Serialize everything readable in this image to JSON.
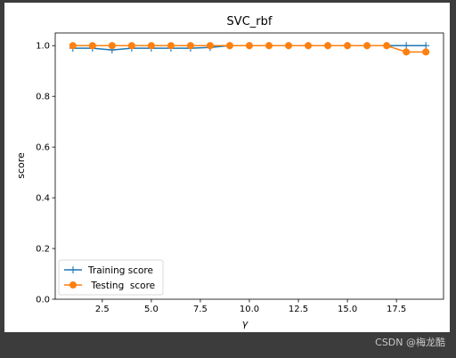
{
  "colors": {
    "train": "#1f77b4",
    "test": "#ff7f0e",
    "window_frame": "#3c3c3c"
  },
  "watermark": "CSDN @梅龙酷",
  "chart_data": {
    "type": "line",
    "title": "SVC_rbf",
    "xlabel": "γ",
    "ylabel": "score",
    "xlim": [
      0.1,
      19.9
    ],
    "ylim": [
      0.0,
      1.05
    ],
    "xticks": [
      2.5,
      5.0,
      7.5,
      10.0,
      12.5,
      15.0,
      17.5
    ],
    "xtick_labels": [
      "2.5",
      "5.0",
      "7.5",
      "10.0",
      "12.5",
      "15.0",
      "17.5"
    ],
    "yticks": [
      0.0,
      0.2,
      0.4,
      0.6,
      0.8,
      1.0
    ],
    "ytick_labels": [
      "0.0",
      "0.2",
      "0.4",
      "0.6",
      "0.8",
      "1.0"
    ],
    "grid": false,
    "legend_position": "lower-left",
    "x": [
      1,
      2,
      3,
      4,
      5,
      6,
      7,
      8,
      9,
      10,
      11,
      12,
      13,
      14,
      15,
      16,
      17,
      18,
      19
    ],
    "series": [
      {
        "name": "Training score",
        "marker": "plus",
        "color": "#1f77b4",
        "values": [
          0.99,
          0.99,
          0.983,
          0.99,
          0.99,
          0.99,
          0.99,
          0.993,
          1.0,
          1.0,
          1.0,
          1.0,
          1.0,
          1.0,
          1.0,
          1.0,
          1.0,
          1.0,
          1.0
        ]
      },
      {
        "name": " Testing  score",
        "marker": "circle",
        "color": "#ff7f0e",
        "values": [
          1.0,
          1.0,
          1.0,
          1.0,
          1.0,
          1.0,
          1.0,
          1.0,
          1.0,
          1.0,
          1.0,
          1.0,
          1.0,
          1.0,
          1.0,
          1.0,
          1.0,
          0.975,
          0.975
        ]
      }
    ]
  }
}
